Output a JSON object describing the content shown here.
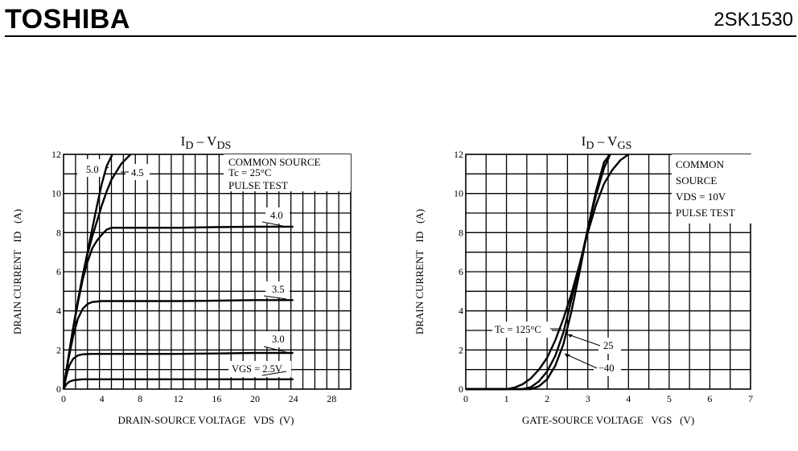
{
  "header": {
    "brand": "TOSHIBA",
    "part_number": "2SK1530"
  },
  "chart_data": [
    {
      "type": "line",
      "title": "ID – VDS",
      "xlabel": "DRAIN-SOURCE VOLTAGE   VDS  (V)",
      "ylabel": "DRAIN CURRENT   ID   (A)",
      "xlim": [
        0,
        30
      ],
      "ylim": [
        0,
        12
      ],
      "x_ticks": [
        "0",
        "4",
        "8",
        "12",
        "16",
        "20",
        "24",
        "28"
      ],
      "y_ticks": [
        "0",
        "2",
        "4",
        "6",
        "8",
        "10",
        "12"
      ],
      "grid": true,
      "notes": [
        "COMMON SOURCE",
        "Tc = 25°C",
        "PULSE TEST"
      ],
      "curve_labels": [
        "5.0",
        "4.5",
        "4.0",
        "3.5",
        "3.0",
        "VGS = 2.5V"
      ],
      "series": [
        {
          "x": [
            0,
            0.5,
            1,
            1.5,
            2,
            2.5,
            3,
            3.5,
            4,
            4.5,
            5.1
          ],
          "y": [
            0,
            1.6,
            3.1,
            4.5,
            5.8,
            7.0,
            8.2,
            9.4,
            10.5,
            11.4,
            12
          ]
        },
        {
          "x": [
            0,
            0.5,
            1,
            1.5,
            2,
            2.5,
            3,
            3.5,
            4,
            4.5,
            5,
            6,
            7.0
          ],
          "y": [
            0,
            1.6,
            3.1,
            4.5,
            5.8,
            6.9,
            7.8,
            8.6,
            9.4,
            10.1,
            10.7,
            11.5,
            12
          ]
        },
        {
          "x": [
            0,
            0.5,
            1,
            1.5,
            2,
            2.5,
            3,
            3.5,
            4,
            4.5,
            5,
            6,
            8,
            12,
            16,
            20,
            24
          ],
          "y": [
            0,
            1.6,
            3.1,
            4.4,
            5.6,
            6.5,
            7.2,
            7.6,
            7.9,
            8.15,
            8.25,
            8.25,
            8.25,
            8.25,
            8.28,
            8.3,
            8.3
          ]
        },
        {
          "x": [
            0,
            0.5,
            1,
            1.5,
            2,
            2.5,
            3,
            4,
            5,
            8,
            12,
            16,
            20,
            24
          ],
          "y": [
            0,
            1.5,
            2.7,
            3.6,
            4.1,
            4.35,
            4.45,
            4.5,
            4.5,
            4.5,
            4.5,
            4.52,
            4.55,
            4.55
          ]
        },
        {
          "x": [
            0,
            0.3,
            0.6,
            1,
            1.5,
            2,
            3,
            4,
            8,
            12,
            16,
            20,
            24
          ],
          "y": [
            0,
            0.7,
            1.2,
            1.55,
            1.72,
            1.78,
            1.8,
            1.8,
            1.8,
            1.8,
            1.82,
            1.85,
            1.85
          ]
        },
        {
          "x": [
            0,
            0.3,
            0.6,
            1,
            1.5,
            2,
            4,
            8,
            12,
            16,
            20,
            24
          ],
          "y": [
            0,
            0.25,
            0.38,
            0.45,
            0.48,
            0.5,
            0.5,
            0.5,
            0.5,
            0.5,
            0.5,
            0.5
          ]
        }
      ]
    },
    {
      "type": "line",
      "title": "ID – VGS",
      "xlabel": "GATE-SOURCE VOLTAGE   VGS   (V)",
      "ylabel": "DRAIN CURRENT   ID   (A)",
      "xlim": [
        0,
        7
      ],
      "ylim": [
        0,
        12
      ],
      "x_ticks": [
        "0",
        "1",
        "2",
        "3",
        "4",
        "5",
        "6",
        "7"
      ],
      "y_ticks": [
        "0",
        "2",
        "4",
        "6",
        "8",
        "10",
        "12"
      ],
      "grid": true,
      "notes": [
        "COMMON",
        "SOURCE",
        "VDS = 10V",
        "PULSE TEST"
      ],
      "curve_labels": [
        "Tc = 125°C",
        "25",
        "−40"
      ],
      "series": [
        {
          "x": [
            0,
            1.0,
            1.2,
            1.4,
            1.6,
            1.8,
            2.0,
            2.2,
            2.4,
            2.6,
            2.8,
            3.0,
            3.2,
            3.4,
            3.6,
            3.8,
            4.0
          ],
          "y": [
            0,
            0,
            0.08,
            0.25,
            0.55,
            1.0,
            1.6,
            2.5,
            3.6,
            4.9,
            6.4,
            8.0,
            9.4,
            10.5,
            11.2,
            11.7,
            12
          ]
        },
        {
          "x": [
            0,
            1.4,
            1.6,
            1.8,
            2.0,
            2.2,
            2.4,
            2.6,
            2.8,
            3.0,
            3.2,
            3.4,
            3.55
          ],
          "y": [
            0,
            0,
            0.1,
            0.4,
            0.9,
            1.7,
            2.9,
            4.6,
            6.3,
            8.2,
            9.9,
            11.3,
            12
          ]
        },
        {
          "x": [
            0,
            1.6,
            1.8,
            2.0,
            2.2,
            2.4,
            2.6,
            2.8,
            3.0,
            3.2,
            3.4,
            3.55
          ],
          "y": [
            0,
            0,
            0.15,
            0.5,
            1.2,
            2.3,
            4.0,
            6.0,
            8.2,
            10.1,
            11.6,
            12
          ]
        }
      ]
    }
  ]
}
